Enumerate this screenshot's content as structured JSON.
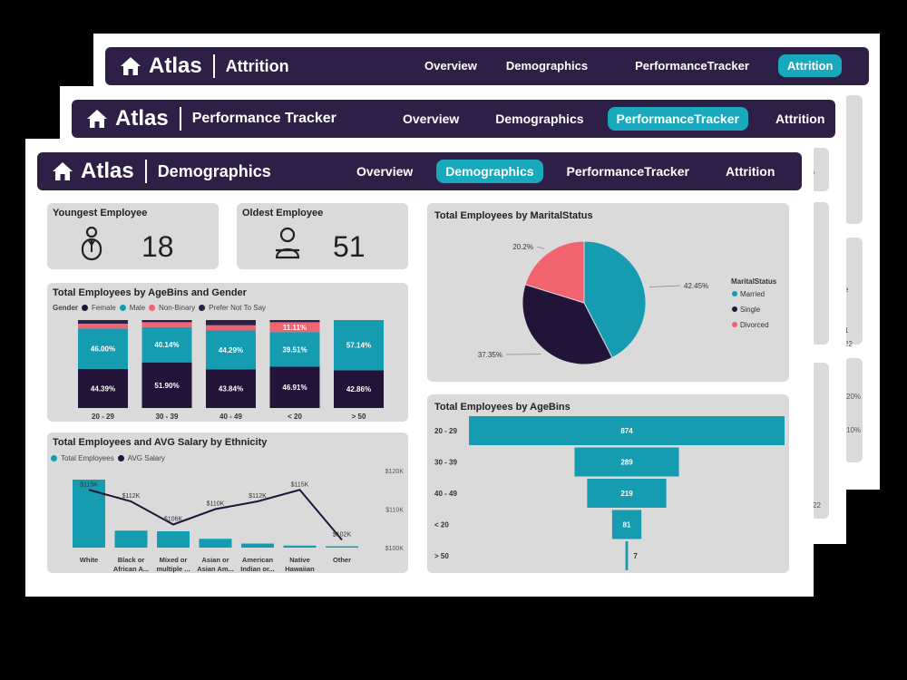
{
  "brand": "Atlas",
  "colors": {
    "nav_bg": "#2d1f46",
    "accent": "#18a9bd",
    "teal": "#169cb0",
    "navy": "#221338",
    "pink": "#f0636f",
    "card": "#dadada"
  },
  "pages": {
    "attrition": {
      "title": "Attrition",
      "menu": [
        "Overview",
        "Demographics",
        "PerformanceTracker",
        "Attrition"
      ],
      "active": "Attrition"
    },
    "performance": {
      "title": "Performance Tracker",
      "menu": [
        "Overview",
        "Demographics",
        "PerformanceTracker",
        "Attrition"
      ],
      "active": "PerformanceTracker"
    },
    "demographics": {
      "title": "Demographics",
      "menu": [
        "Overview",
        "Demographics",
        "PerformanceTracker",
        "Attrition"
      ],
      "active": "Demographics"
    }
  },
  "back_fragments": {
    "pct_a": "20%",
    "pct_b": "10%",
    "year": "22",
    "year_b": "22",
    "digit": "1",
    "letter": "e"
  },
  "kpi": {
    "youngest": {
      "label": "Youngest Employee",
      "value": "18",
      "icon": "young-person-icon"
    },
    "oldest": {
      "label": "Oldest Employee",
      "value": "51",
      "icon": "elder-person-icon"
    }
  },
  "age_gender": {
    "title": "Total Employees by AgeBins and Gender",
    "legend_title": "Gender",
    "legend": [
      "Female",
      "Male",
      "Non-Binary",
      "Prefer Not To Say"
    ],
    "chart_data": {
      "type": "bar",
      "stacked": true,
      "categories": [
        "20 - 29",
        "30 - 39",
        "40 - 49",
        "< 20",
        "> 50"
      ],
      "series": [
        {
          "name": "Female",
          "values": [
            44.39,
            51.9,
            43.84,
            46.91,
            42.86
          ],
          "labels": [
            "44.39%",
            "51.90%",
            "43.84%",
            "46.91%",
            "42.86%"
          ]
        },
        {
          "name": "Male",
          "values": [
            46.0,
            40.14,
            44.29,
            39.51,
            57.14
          ],
          "labels": [
            "46.00%",
            "40.14%",
            "44.29%",
            "39.51%",
            "57.14%"
          ]
        },
        {
          "name": "Non-Binary",
          "values": [
            5.5,
            5.5,
            6.0,
            11.11,
            0
          ],
          "labels": [
            "",
            "",
            "",
            "11.11%",
            ""
          ]
        },
        {
          "name": "Prefer Not To Say",
          "values": [
            4.11,
            2.46,
            5.87,
            2.47,
            0
          ],
          "labels": [
            "",
            "",
            "",
            "",
            ""
          ]
        }
      ]
    }
  },
  "ethnicity": {
    "title": "Total Employees and AVG Salary by Ethnicity",
    "legend": [
      "Total Employees",
      "AVG Salary"
    ],
    "axis_right": [
      "$120K",
      "$110K",
      "$100K"
    ],
    "chart_data": {
      "type": "bar",
      "categories": [
        [
          "White"
        ],
        [
          "Black or",
          "African A..."
        ],
        [
          "Mixed or",
          "multiple ..."
        ],
        [
          "Asian or",
          "Asian Am..."
        ],
        [
          "American",
          "Indian or..."
        ],
        [
          "Native",
          "Hawaiian"
        ],
        [
          "Other"
        ]
      ],
      "series": [
        {
          "name": "Total Employees",
          "values": [
            100,
            25,
            24,
            13,
            6,
            3,
            2
          ]
        },
        {
          "name": "AVG Salary",
          "values": [
            115,
            112,
            106,
            110,
            112,
            115,
            102
          ],
          "labels": [
            "$115K",
            "$112K",
            "$106K",
            "$110K",
            "$112K",
            "$115K",
            "$102K"
          ]
        }
      ],
      "ylim_right": [
        100,
        120
      ]
    }
  },
  "marital": {
    "title": "Total Employees by MaritalStatus",
    "legend_title": "MaritalStatus",
    "chart_data": {
      "type": "pie",
      "labels": [
        "Married",
        "Single",
        "Divorced"
      ],
      "values": [
        42.45,
        37.35,
        20.2
      ],
      "value_labels": [
        "42.45%",
        "37.35%",
        "20.2%"
      ]
    }
  },
  "agebins": {
    "title": "Total Employees by AgeBins",
    "chart_data": {
      "type": "bar",
      "orientation": "funnel",
      "categories": [
        "20 - 29",
        "30 - 39",
        "40 - 49",
        "< 20",
        "> 50"
      ],
      "values": [
        874,
        289,
        219,
        81,
        7
      ]
    }
  }
}
